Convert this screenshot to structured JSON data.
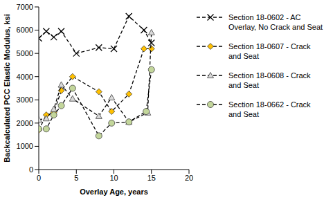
{
  "chart_data": {
    "type": "scatter",
    "x_label": "Overlay Age, years",
    "y_label": "Backcalculated  PCC Elastic Modulus, ksi",
    "xlim": [
      0,
      20
    ],
    "xticks": [
      0,
      5,
      10,
      15,
      20
    ],
    "ylim": [
      0,
      7000
    ],
    "yticks": [
      0,
      1000,
      2000,
      3000,
      4000,
      5000,
      6000,
      7000
    ],
    "grid": false,
    "legend": "right",
    "line_style": "dashed",
    "series": [
      {
        "name": "Section 18-0602 - AC Overlay, No Crack and Seat",
        "color": "#000000",
        "marker": "x",
        "x": [
          0,
          1,
          2,
          3,
          5,
          8,
          10,
          12,
          14,
          15
        ],
        "values": [
          5650,
          5950,
          5700,
          5950,
          5000,
          5250,
          5200,
          6600,
          6000,
          5450
        ]
      },
      {
        "name": "Section 18-0607 - Crack and Seat",
        "color": "#ffc000",
        "marker": "diamond",
        "x": [
          0,
          1,
          2,
          3,
          4.5,
          8,
          9.7,
          12,
          14,
          15
        ],
        "values": [
          1700,
          2350,
          2450,
          3400,
          4000,
          3350,
          2500,
          3250,
          5200,
          5200
        ]
      },
      {
        "name": "Section 18-0608 - Crack and Seat",
        "color": "#d9d9d9",
        "marker": "triangle",
        "x": [
          0,
          1,
          2,
          3,
          4.5,
          8,
          9.7,
          12,
          14.5,
          15
        ],
        "values": [
          2150,
          2200,
          2600,
          3650,
          3050,
          2300,
          3100,
          2050,
          2450,
          5900
        ]
      },
      {
        "name": "Section 18-0662 - Crack and Seat",
        "color": "#c3d69b",
        "marker": "circle",
        "x": [
          0,
          1,
          2,
          3,
          4.5,
          8,
          9.7,
          12,
          14.3,
          15
        ],
        "values": [
          1750,
          1750,
          2350,
          2750,
          3500,
          1450,
          2000,
          2050,
          2500,
          4300
        ]
      }
    ]
  }
}
